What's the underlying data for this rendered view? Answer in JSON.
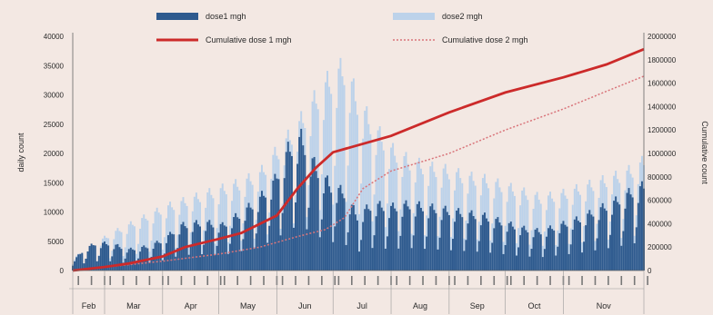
{
  "chart_data": {
    "type": "bar",
    "combo": "bars + lines, dual y-axis",
    "grid": false,
    "legend_position": "top",
    "xlabel": "",
    "ylabel": "daily count",
    "y2label": "Cumulative count",
    "ylim": [
      0,
      40000
    ],
    "y2lim": [
      0,
      2000000
    ],
    "yticks": [
      0,
      5000,
      10000,
      15000,
      20000,
      25000,
      30000,
      35000,
      40000
    ],
    "y2ticks": [
      0,
      200000,
      400000,
      600000,
      800000,
      1000000,
      1200000,
      1400000,
      1600000,
      1800000,
      2000000
    ],
    "x_day_index_range": [
      0,
      305
    ],
    "months": [
      {
        "label": "Feb",
        "start": 0,
        "end": 17
      },
      {
        "label": "Mar",
        "start": 17,
        "end": 48
      },
      {
        "label": "Apr",
        "start": 48,
        "end": 78
      },
      {
        "label": "May",
        "start": 78,
        "end": 109
      },
      {
        "label": "Jun",
        "start": 109,
        "end": 139
      },
      {
        "label": "Jul",
        "start": 139,
        "end": 170
      },
      {
        "label": "Aug",
        "start": 170,
        "end": 201
      },
      {
        "label": "Sep",
        "start": 201,
        "end": 231
      },
      {
        "label": "Oct",
        "start": 231,
        "end": 262
      },
      {
        "label": "Nov",
        "start": 262,
        "end": 305
      }
    ],
    "series": [
      {
        "name": "dose1 mgh",
        "kind": "bar",
        "axis": "left",
        "color": "#2e5a8e",
        "points": [
          [
            0,
            1500
          ],
          [
            6,
            3500
          ],
          [
            12,
            4500
          ],
          [
            20,
            4500
          ],
          [
            30,
            3500
          ],
          [
            40,
            4000
          ],
          [
            48,
            5000
          ],
          [
            58,
            7500
          ],
          [
            70,
            8000
          ],
          [
            80,
            7500
          ],
          [
            90,
            9500
          ],
          [
            100,
            12000
          ],
          [
            108,
            15000
          ],
          [
            115,
            20000
          ],
          [
            122,
            22000
          ],
          [
            130,
            17000
          ],
          [
            138,
            14000
          ],
          [
            145,
            13000
          ],
          [
            152,
            9000
          ],
          [
            160,
            11000
          ],
          [
            170,
            10500
          ],
          [
            180,
            11000
          ],
          [
            190,
            10500
          ],
          [
            200,
            10000
          ],
          [
            210,
            9500
          ],
          [
            220,
            9000
          ],
          [
            230,
            8000
          ],
          [
            240,
            7000
          ],
          [
            250,
            6500
          ],
          [
            260,
            7500
          ],
          [
            270,
            8500
          ],
          [
            280,
            10000
          ],
          [
            290,
            11500
          ],
          [
            298,
            13000
          ],
          [
            305,
            14000
          ]
        ]
      },
      {
        "name": "dose2 mgh",
        "kind": "bar",
        "axis": "left",
        "color": "#bcd2ea",
        "points": [
          [
            0,
            2000
          ],
          [
            10,
            4000
          ],
          [
            20,
            6000
          ],
          [
            30,
            7500
          ],
          [
            40,
            9000
          ],
          [
            50,
            10500
          ],
          [
            60,
            11500
          ],
          [
            70,
            12500
          ],
          [
            80,
            13500
          ],
          [
            90,
            14500
          ],
          [
            100,
            16000
          ],
          [
            110,
            20000
          ],
          [
            118,
            23000
          ],
          [
            126,
            26500
          ],
          [
            132,
            29500
          ],
          [
            140,
            32500
          ],
          [
            146,
            33500
          ],
          [
            152,
            28000
          ],
          [
            160,
            24000
          ],
          [
            170,
            20000
          ],
          [
            180,
            18000
          ],
          [
            190,
            17000
          ],
          [
            200,
            16500
          ],
          [
            210,
            15500
          ],
          [
            220,
            15000
          ],
          [
            230,
            14000
          ],
          [
            240,
            13000
          ],
          [
            250,
            12000
          ],
          [
            260,
            12500
          ],
          [
            270,
            13500
          ],
          [
            280,
            14500
          ],
          [
            290,
            15500
          ],
          [
            298,
            16500
          ],
          [
            305,
            18000
          ]
        ]
      },
      {
        "name": "Cumulative dose 1 mgh",
        "kind": "line",
        "axis": "right",
        "color": "#cc2a2a",
        "points": [
          [
            0,
            0
          ],
          [
            17,
            30000
          ],
          [
            30,
            60000
          ],
          [
            48,
            120000
          ],
          [
            60,
            200000
          ],
          [
            78,
            270000
          ],
          [
            90,
            320000
          ],
          [
            109,
            470000
          ],
          [
            120,
            700000
          ],
          [
            130,
            880000
          ],
          [
            139,
            1010000
          ],
          [
            150,
            1060000
          ],
          [
            170,
            1150000
          ],
          [
            201,
            1350000
          ],
          [
            231,
            1520000
          ],
          [
            262,
            1650000
          ],
          [
            285,
            1760000
          ],
          [
            305,
            1890000
          ]
        ]
      },
      {
        "name": "Cumulative dose 2 mgh",
        "kind": "line",
        "axis": "right",
        "color": "#d9747a",
        "points": [
          [
            0,
            0
          ],
          [
            48,
            80000
          ],
          [
            78,
            140000
          ],
          [
            100,
            200000
          ],
          [
            120,
            290000
          ],
          [
            135,
            350000
          ],
          [
            145,
            450000
          ],
          [
            155,
            700000
          ],
          [
            170,
            850000
          ],
          [
            201,
            1000000
          ],
          [
            231,
            1200000
          ],
          [
            262,
            1380000
          ],
          [
            285,
            1530000
          ],
          [
            305,
            1660000
          ]
        ]
      }
    ]
  }
}
